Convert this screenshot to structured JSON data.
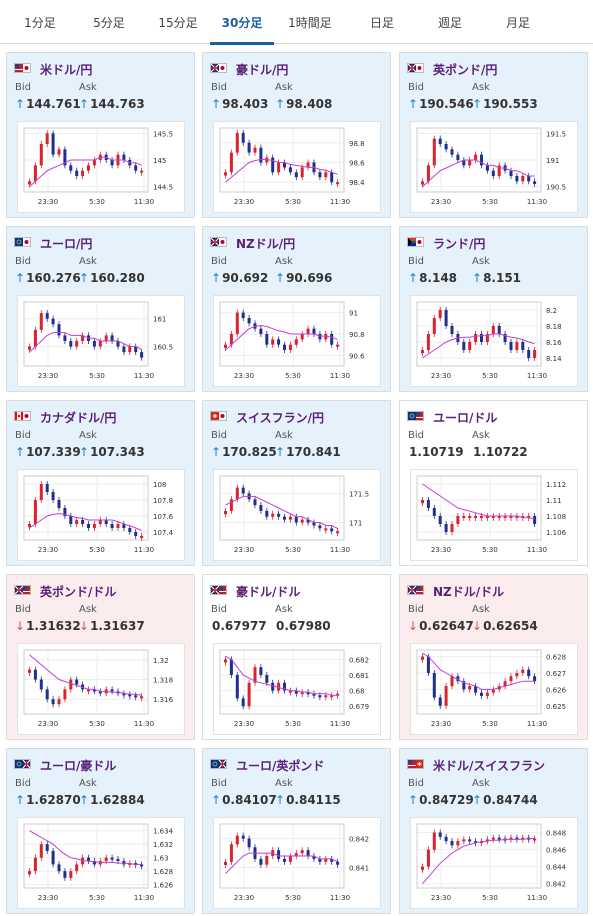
{
  "tabs": [
    "1分足",
    "5分足",
    "15分足",
    "30分足",
    "1時間足",
    "日足",
    "週足",
    "月足"
  ],
  "active_tab": "30分足",
  "bid_label": "Bid",
  "ask_label": "Ask",
  "x_ticks": [
    "23:30",
    "5:30",
    "11:30"
  ],
  "colors": {
    "up_candle": "#d9232e",
    "down_candle": "#1f2f8f",
    "ma": "#c23ed6",
    "ma2": "#1fa3a3",
    "up_bg": "#e6f2fb",
    "down_bg": "#fbeced",
    "pair": "#5a1f78"
  },
  "cards": [
    {
      "pair": "米ドル/円",
      "flag": "us-jp",
      "trend": "up",
      "bid_arrow": "↑",
      "bid": "144.761",
      "ask_arrow": "↑",
      "ask": "144.763",
      "y_ticks": [
        "145.5",
        "145",
        "144.5"
      ],
      "ylim": [
        144.4,
        145.6
      ],
      "closes": [
        144.6,
        144.9,
        145.3,
        145.5,
        145.1,
        145.2,
        144.9,
        144.8,
        144.7,
        144.8,
        144.9,
        145.0,
        145.1,
        145.0,
        144.9,
        145.1,
        145.0,
        144.9,
        144.8,
        144.8
      ],
      "ma": [
        144.5,
        144.6,
        144.7,
        144.8,
        144.85,
        144.9,
        144.95,
        145.0,
        145.0,
        145.0,
        145.0,
        145.0,
        145.05,
        145.05,
        145.0,
        145.0,
        145.0,
        144.95,
        144.95,
        144.9
      ]
    },
    {
      "pair": "豪ドル/円",
      "flag": "au-jp",
      "trend": "up",
      "bid_arrow": "↑",
      "bid": "98.403",
      "ask_arrow": "↑",
      "ask": "98.408",
      "y_ticks": [
        "98.8",
        "98.6",
        "98.4"
      ],
      "ylim": [
        98.3,
        98.95
      ],
      "closes": [
        98.5,
        98.7,
        98.9,
        98.8,
        98.7,
        98.75,
        98.6,
        98.65,
        98.5,
        98.6,
        98.55,
        98.5,
        98.45,
        98.55,
        98.6,
        98.5,
        98.45,
        98.5,
        98.4,
        98.4
      ],
      "ma": [
        98.4,
        98.45,
        98.5,
        98.55,
        98.6,
        98.62,
        98.63,
        98.63,
        98.62,
        98.6,
        98.6,
        98.58,
        98.57,
        98.56,
        98.55,
        98.55,
        98.53,
        98.52,
        98.5,
        98.48
      ]
    },
    {
      "pair": "英ポンド/円",
      "flag": "uk-jp",
      "trend": "up",
      "bid_arrow": "↑",
      "bid": "190.546",
      "ask_arrow": "↑",
      "ask": "190.553",
      "y_ticks": [
        "191.5",
        "191",
        "190.5"
      ],
      "ylim": [
        190.4,
        191.6
      ],
      "closes": [
        190.6,
        190.9,
        191.4,
        191.3,
        191.2,
        191.1,
        191.0,
        190.9,
        191.0,
        191.1,
        190.9,
        190.8,
        190.7,
        190.9,
        190.8,
        190.7,
        190.6,
        190.7,
        190.6,
        190.55
      ],
      "ma": [
        190.5,
        190.6,
        190.7,
        190.8,
        190.85,
        190.9,
        190.95,
        191.0,
        191.0,
        191.0,
        190.95,
        190.9,
        190.9,
        190.85,
        190.85,
        190.8,
        190.8,
        190.75,
        190.7,
        190.7
      ]
    },
    {
      "pair": "ユーロ/円",
      "flag": "eu-jp",
      "trend": "up",
      "bid_arrow": "↑",
      "bid": "160.276",
      "ask_arrow": "↑",
      "ask": "160.280",
      "y_ticks": [
        "161",
        "160.5"
      ],
      "ylim": [
        160.15,
        161.3
      ],
      "closes": [
        160.5,
        160.8,
        161.1,
        161.0,
        160.9,
        160.7,
        160.6,
        160.5,
        160.6,
        160.7,
        160.6,
        160.5,
        160.6,
        160.7,
        160.6,
        160.5,
        160.4,
        160.5,
        160.4,
        160.3
      ],
      "ma": [
        160.4,
        160.5,
        160.6,
        160.7,
        160.75,
        160.75,
        160.75,
        160.7,
        160.7,
        160.7,
        160.65,
        160.65,
        160.6,
        160.6,
        160.6,
        160.6,
        160.55,
        160.5,
        160.5,
        160.45
      ]
    },
    {
      "pair": "NZドル/円",
      "flag": "nz-jp",
      "trend": "up",
      "bid_arrow": "↑",
      "bid": "90.692",
      "ask_arrow": "↑",
      "ask": "90.696",
      "y_ticks": [
        "91",
        "90.8",
        "90.6"
      ],
      "ylim": [
        90.5,
        91.1
      ],
      "closes": [
        90.7,
        90.8,
        91.0,
        90.95,
        90.9,
        90.85,
        90.8,
        90.7,
        90.75,
        90.7,
        90.65,
        90.7,
        90.75,
        90.8,
        90.85,
        90.8,
        90.75,
        90.8,
        90.7,
        90.7
      ],
      "ma": [
        90.65,
        90.7,
        90.75,
        90.8,
        90.85,
        90.87,
        90.88,
        90.87,
        90.85,
        90.83,
        90.82,
        90.8,
        90.8,
        90.8,
        90.8,
        90.8,
        90.78,
        90.78,
        90.77,
        90.75
      ]
    },
    {
      "pair": "ランド/円",
      "flag": "za-jp",
      "trend": "up",
      "bid_arrow": "↑",
      "bid": "8.148",
      "ask_arrow": "↑",
      "ask": "8.151",
      "y_ticks": [
        "8.2",
        "8.18",
        "8.16",
        "8.14"
      ],
      "ylim": [
        8.13,
        8.21
      ],
      "closes": [
        8.15,
        8.17,
        8.19,
        8.2,
        8.18,
        8.17,
        8.16,
        8.15,
        8.16,
        8.17,
        8.16,
        8.17,
        8.18,
        8.17,
        8.16,
        8.15,
        8.16,
        8.15,
        8.14,
        8.15
      ],
      "ma": [
        8.14,
        8.145,
        8.15,
        8.155,
        8.16,
        8.163,
        8.165,
        8.166,
        8.166,
        8.167,
        8.168,
        8.168,
        8.17,
        8.17,
        8.168,
        8.166,
        8.165,
        8.163,
        8.16,
        8.158
      ]
    },
    {
      "pair": "カナダドル/円",
      "flag": "ca-jp",
      "trend": "up",
      "bid_arrow": "↑",
      "bid": "107.339",
      "ask_arrow": "↑",
      "ask": "107.343",
      "y_ticks": [
        "108",
        "107.8",
        "107.6",
        "107.4"
      ],
      "ylim": [
        107.3,
        108.1
      ],
      "closes": [
        107.5,
        107.8,
        108.0,
        107.9,
        107.8,
        107.7,
        107.6,
        107.5,
        107.55,
        107.5,
        107.45,
        107.5,
        107.55,
        107.5,
        107.45,
        107.5,
        107.45,
        107.4,
        107.35,
        107.35
      ],
      "ma": [
        107.45,
        107.5,
        107.55,
        107.6,
        107.62,
        107.63,
        107.62,
        107.6,
        107.58,
        107.57,
        107.55,
        107.55,
        107.55,
        107.55,
        107.55,
        107.53,
        107.5,
        107.48,
        107.45,
        107.42
      ]
    },
    {
      "pair": "スイスフラン/円",
      "flag": "ch-jp",
      "trend": "up",
      "bid_arrow": "↑",
      "bid": "170.825",
      "ask_arrow": "↑",
      "ask": "170.841",
      "y_ticks": [
        "171.5",
        "171"
      ],
      "ylim": [
        170.7,
        171.8
      ],
      "closes": [
        171.2,
        171.4,
        171.6,
        171.5,
        171.4,
        171.3,
        171.2,
        171.1,
        171.15,
        171.1,
        171.05,
        171.1,
        171.0,
        171.05,
        171.0,
        170.95,
        170.9,
        170.9,
        170.85,
        170.85
      ],
      "ma": [
        171.3,
        171.35,
        171.4,
        171.45,
        171.45,
        171.45,
        171.4,
        171.35,
        171.3,
        171.25,
        171.2,
        171.15,
        171.1,
        171.1,
        171.05,
        171.0,
        171.0,
        170.95,
        170.95,
        170.9
      ]
    },
    {
      "pair": "ユーロ/ドル",
      "flag": "eu-us",
      "trend": "flat",
      "bid_arrow": "",
      "bid": "1.10719",
      "ask_arrow": "",
      "ask": "1.10722",
      "y_ticks": [
        "1.112",
        "1.11",
        "1.108",
        "1.106"
      ],
      "ylim": [
        1.105,
        1.113
      ],
      "closes": [
        1.11,
        1.109,
        1.108,
        1.107,
        1.106,
        1.107,
        1.108,
        1.108,
        1.108,
        1.108,
        1.108,
        1.108,
        1.108,
        1.108,
        1.108,
        1.108,
        1.108,
        1.108,
        1.108,
        1.107
      ],
      "ma": [
        1.112,
        1.1115,
        1.111,
        1.1105,
        1.11,
        1.1095,
        1.109,
        1.1088,
        1.1086,
        1.1084,
        1.1082,
        1.108,
        1.108,
        1.108,
        1.108,
        1.108,
        1.108,
        1.1078,
        1.1078,
        1.1076
      ]
    },
    {
      "pair": "英ポンド/ドル",
      "flag": "uk-us",
      "trend": "down",
      "bid_arrow": "↓",
      "bid": "1.31632",
      "ask_arrow": "↓",
      "ask": "1.31637",
      "y_ticks": [
        "1.32",
        "1.318",
        "1.316"
      ],
      "ylim": [
        1.3145,
        1.321
      ],
      "closes": [
        1.319,
        1.318,
        1.317,
        1.316,
        1.3155,
        1.316,
        1.317,
        1.318,
        1.3175,
        1.317,
        1.317,
        1.3168,
        1.3166,
        1.317,
        1.3168,
        1.3166,
        1.3165,
        1.3164,
        1.3163,
        1.3163
      ],
      "ma": [
        1.3205,
        1.32,
        1.3195,
        1.319,
        1.3185,
        1.318,
        1.3178,
        1.3176,
        1.3174,
        1.3172,
        1.317,
        1.317,
        1.3168,
        1.3168,
        1.3167,
        1.3167,
        1.3166,
        1.3165,
        1.3165,
        1.3164
      ]
    },
    {
      "pair": "豪ドル/ドル",
      "flag": "au-us",
      "trend": "flat",
      "bid_arrow": "",
      "bid": "0.67977",
      "ask_arrow": "",
      "ask": "0.67980",
      "y_ticks": [
        "0.682",
        "0.681",
        "0.68",
        "0.679"
      ],
      "ylim": [
        0.6785,
        0.6826
      ],
      "closes": [
        0.682,
        0.681,
        0.6795,
        0.679,
        0.6805,
        0.6815,
        0.681,
        0.6805,
        0.68,
        0.6805,
        0.68,
        0.68,
        0.6798,
        0.6799,
        0.6798,
        0.6797,
        0.6796,
        0.6797,
        0.6797,
        0.6798
      ],
      "ma": [
        0.6822,
        0.682,
        0.6815,
        0.681,
        0.6808,
        0.6806,
        0.6805,
        0.6804,
        0.6803,
        0.6802,
        0.6801,
        0.68,
        0.68,
        0.6799,
        0.6799,
        0.6798,
        0.6798,
        0.6798,
        0.6797,
        0.6797
      ]
    },
    {
      "pair": "NZドル/ドル",
      "flag": "nz-us",
      "trend": "down",
      "bid_arrow": "↓",
      "bid": "0.62647",
      "ask_arrow": "↓",
      "ask": "0.62654",
      "y_ticks": [
        "0.628",
        "0.627",
        "0.626",
        "0.625"
      ],
      "ylim": [
        0.6245,
        0.6284
      ],
      "closes": [
        0.628,
        0.627,
        0.6255,
        0.625,
        0.6262,
        0.6268,
        0.6265,
        0.626,
        0.6262,
        0.6258,
        0.6256,
        0.6258,
        0.626,
        0.6262,
        0.6265,
        0.6268,
        0.627,
        0.6272,
        0.6268,
        0.6265
      ],
      "ma": [
        0.6282,
        0.628,
        0.6276,
        0.6272,
        0.627,
        0.6268,
        0.6266,
        0.6264,
        0.6263,
        0.6262,
        0.626,
        0.626,
        0.626,
        0.6261,
        0.6262,
        0.6263,
        0.6264,
        0.6265,
        0.6265,
        0.6265
      ]
    },
    {
      "pair": "ユーロ/豪ドル",
      "flag": "eu-au",
      "trend": "up",
      "bid_arrow": "↑",
      "bid": "1.62870",
      "ask_arrow": "↑",
      "ask": "1.62884",
      "y_ticks": [
        "1.634",
        "1.632",
        "1.63",
        "1.628",
        "1.626"
      ],
      "ylim": [
        1.6255,
        1.635
      ],
      "closes": [
        1.628,
        1.63,
        1.632,
        1.631,
        1.629,
        1.628,
        1.627,
        1.628,
        1.629,
        1.63,
        1.6295,
        1.629,
        1.6295,
        1.63,
        1.6298,
        1.6295,
        1.629,
        1.6292,
        1.629,
        1.6287
      ],
      "ma": [
        1.634,
        1.6335,
        1.633,
        1.6325,
        1.632,
        1.6312,
        1.6305,
        1.63,
        1.6298,
        1.6296,
        1.6295,
        1.6294,
        1.6293,
        1.6293,
        1.6293,
        1.6292,
        1.6292,
        1.6291,
        1.629,
        1.629
      ]
    },
    {
      "pair": "ユーロ/英ポンド",
      "flag": "eu-uk",
      "trend": "up",
      "bid_arrow": "↑",
      "bid": "0.84107",
      "ask_arrow": "↑",
      "ask": "0.84115",
      "y_ticks": [
        "0.842",
        "0.841"
      ],
      "ylim": [
        0.8403,
        0.8425
      ],
      "closes": [
        0.8412,
        0.8418,
        0.8421,
        0.842,
        0.8417,
        0.8413,
        0.8411,
        0.8414,
        0.8416,
        0.8413,
        0.8412,
        0.8414,
        0.8415,
        0.8416,
        0.8414,
        0.8413,
        0.8412,
        0.8413,
        0.8412,
        0.8411
      ],
      "ma": [
        0.8408,
        0.841,
        0.8412,
        0.8414,
        0.8415,
        0.8415,
        0.8415,
        0.8415,
        0.8415,
        0.8414,
        0.8414,
        0.8414,
        0.8414,
        0.8414,
        0.8414,
        0.8414,
        0.8413,
        0.8413,
        0.8413,
        0.8412
      ]
    },
    {
      "pair": "米ドル/スイスフラン",
      "flag": "us-ch",
      "trend": "up",
      "bid_arrow": "↑",
      "bid": "0.84729",
      "ask_arrow": "↑",
      "ask": "0.84744",
      "y_ticks": [
        "0.848",
        "0.846",
        "0.844",
        "0.842"
      ],
      "ylim": [
        0.8415,
        0.849
      ],
      "closes": [
        0.844,
        0.846,
        0.848,
        0.8475,
        0.847,
        0.8465,
        0.847,
        0.8472,
        0.847,
        0.8468,
        0.847,
        0.8472,
        0.8474,
        0.8473,
        0.8472,
        0.8474,
        0.8473,
        0.8474,
        0.8473,
        0.8473
      ],
      "ma": [
        0.842,
        0.8428,
        0.8436,
        0.8444,
        0.845,
        0.8456,
        0.846,
        0.8464,
        0.8466,
        0.8468,
        0.8469,
        0.847,
        0.8471,
        0.8471,
        0.8472,
        0.8472,
        0.8472,
        0.8472,
        0.8473,
        0.8473
      ]
    }
  ]
}
